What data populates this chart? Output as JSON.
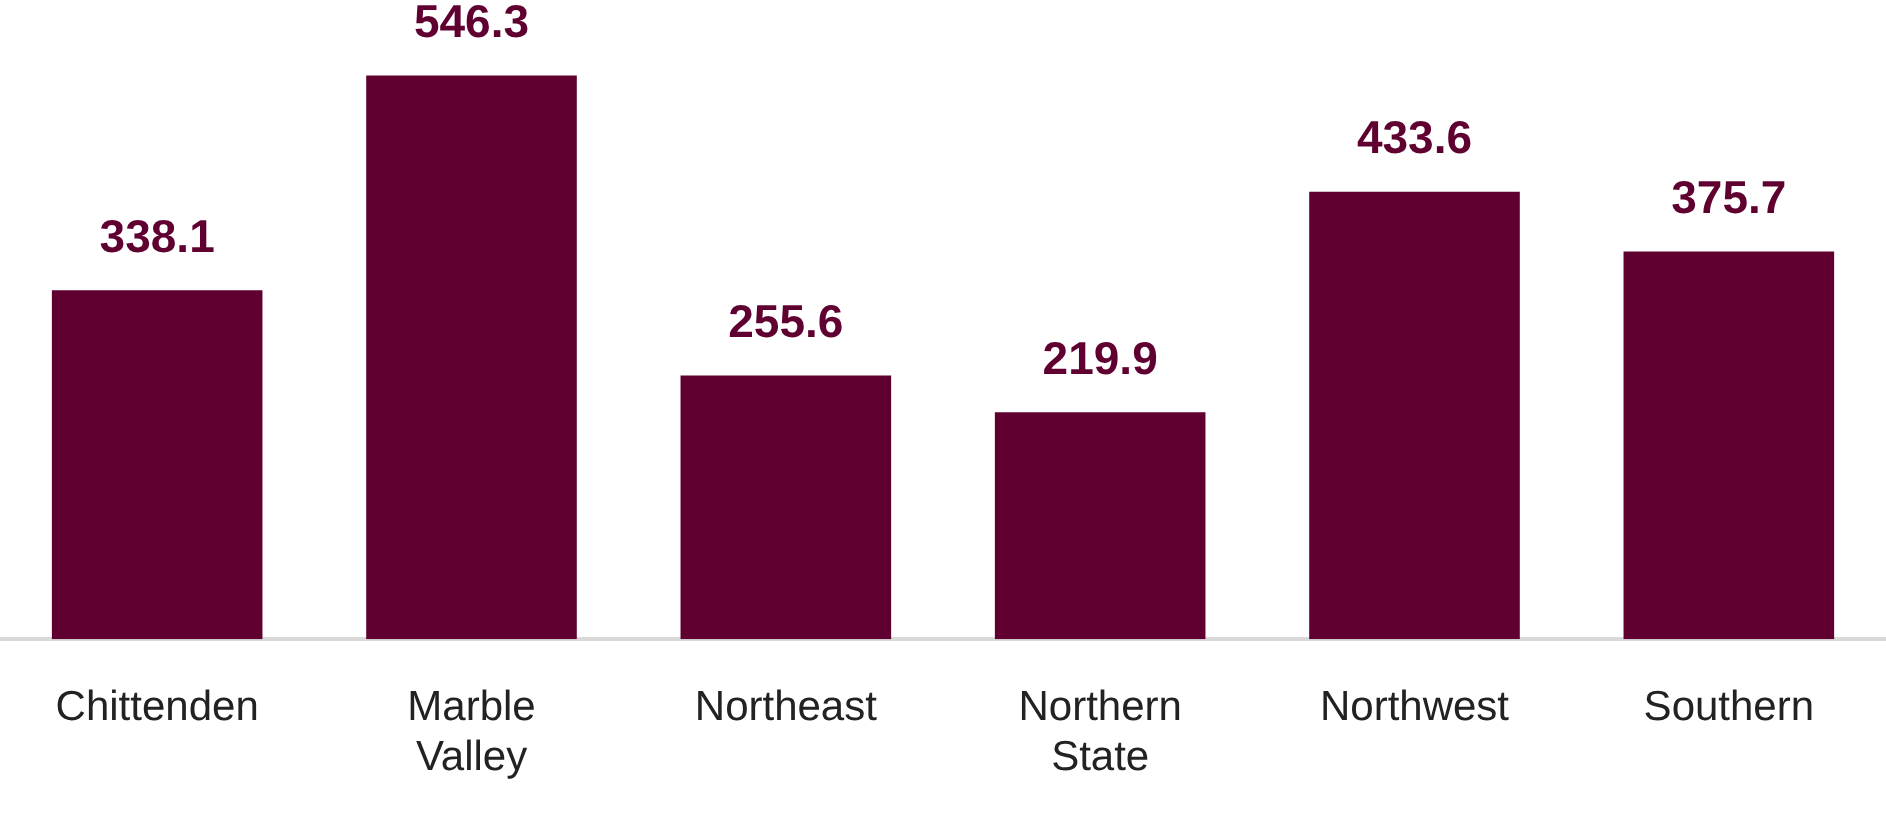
{
  "chart_data": {
    "type": "bar",
    "categories": [
      "Chittenden",
      "Marble Valley",
      "Northeast",
      "Northern State",
      "Northwest",
      "Southern"
    ],
    "values": [
      338.1,
      546.3,
      255.6,
      219.9,
      433.6,
      375.7
    ],
    "color": "#5f0030",
    "data_labels": true,
    "grid": false,
    "legend": false
  }
}
